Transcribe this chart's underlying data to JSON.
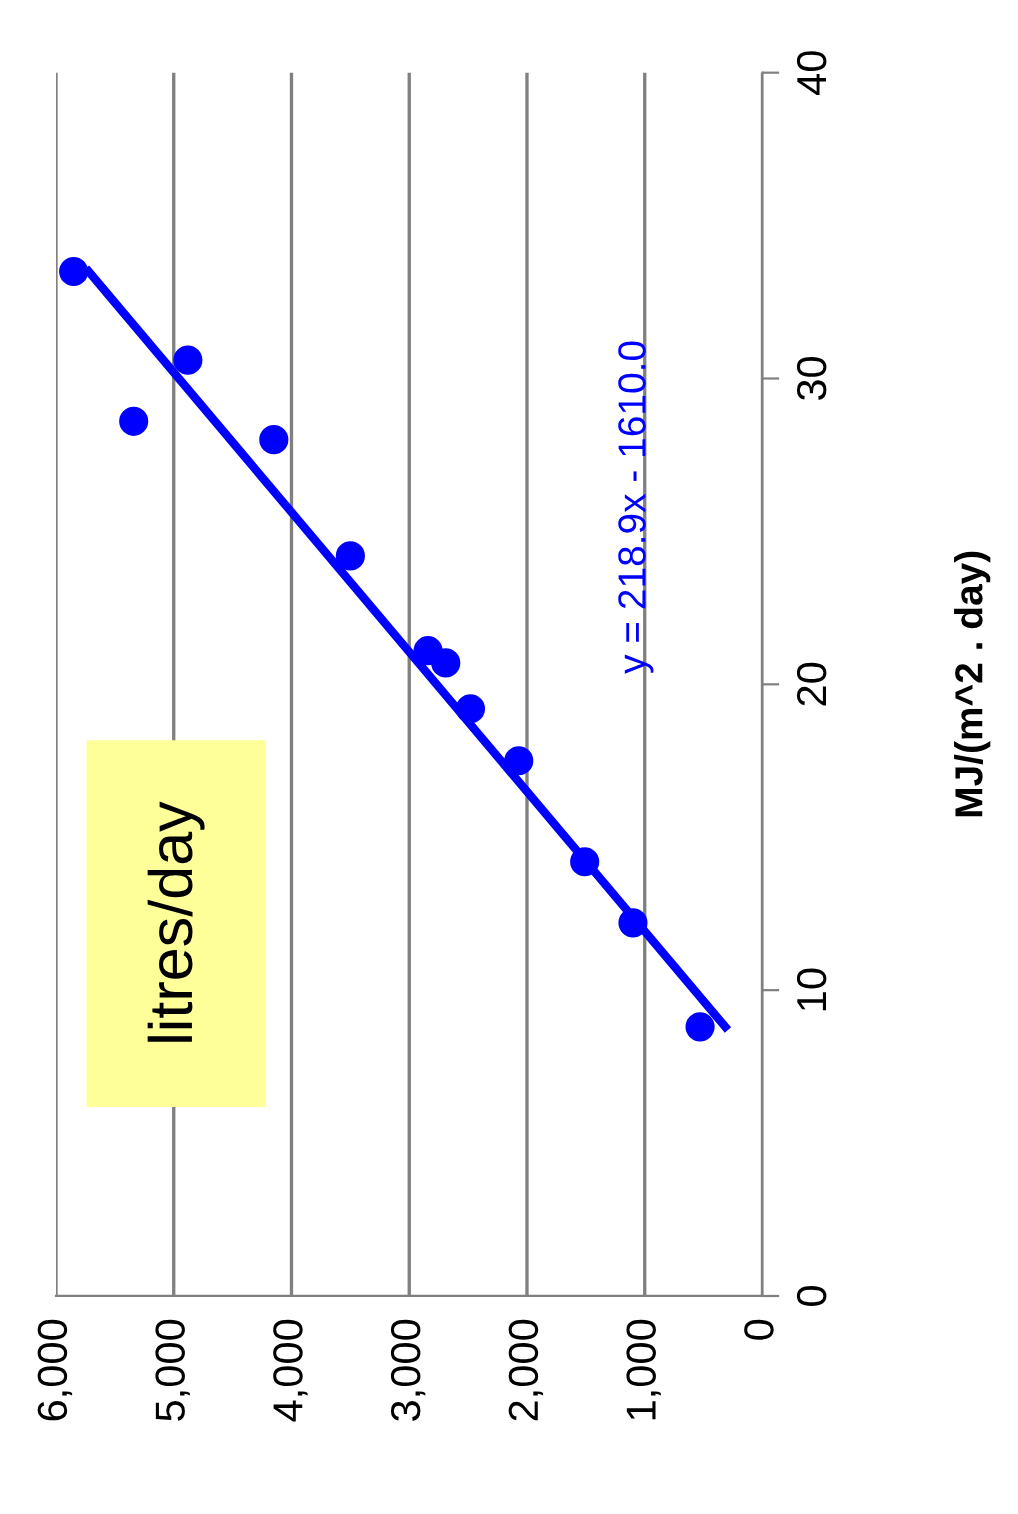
{
  "chart_data": {
    "type": "scatter",
    "ylabel": "MJ/(m^2 . day)",
    "annotations": [
      "litres/day",
      "y = 218.9x - 1610.0"
    ],
    "xlim": [
      6000,
      0
    ],
    "xticks": [
      {
        "value": 0,
        "label": "0"
      },
      {
        "value": 1000,
        "label": "1,000"
      },
      {
        "value": 2000,
        "label": "2,000"
      },
      {
        "value": 3000,
        "label": "3,000"
      },
      {
        "value": 4000,
        "label": "4,000"
      },
      {
        "value": 5000,
        "label": "5,000"
      },
      {
        "value": 6000,
        "label": "6,000"
      }
    ],
    "ylim": [
      0,
      40
    ],
    "yticks": [
      0,
      10,
      20,
      30,
      40
    ],
    "grid": "x",
    "series": [
      {
        "type": "scatter",
        "marker": "circle",
        "color": "#0000ff",
        "x": [
          5850,
          5340,
          4880,
          4150,
          3500,
          2840,
          2690,
          2480,
          2070,
          1510,
          1100,
          530
        ],
        "values": [
          33.5,
          28.6,
          30.6,
          28.0,
          24.2,
          21.1,
          20.7,
          19.2,
          17.5,
          14.2,
          12.2,
          8.8
        ]
      },
      {
        "type": "line",
        "marker": "none",
        "color": "#0000ff",
        "x": [
          316,
          5723
        ],
        "values": [
          8.8,
          33.5
        ]
      }
    ]
  }
}
